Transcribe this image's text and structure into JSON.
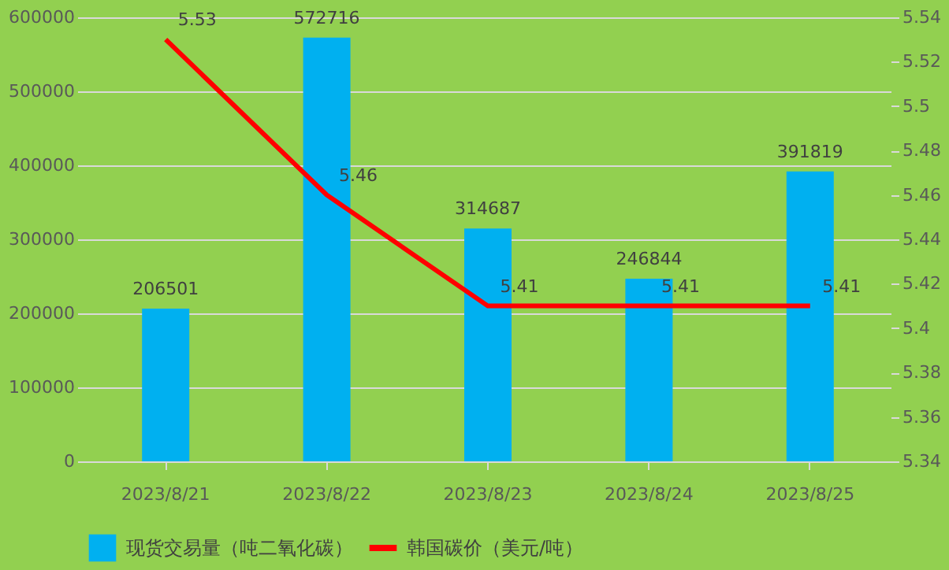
{
  "chart_data": {
    "type": "bar",
    "categories": [
      "2023/8/21",
      "2023/8/22",
      "2023/8/23",
      "2023/8/24",
      "2023/8/25"
    ],
    "series": [
      {
        "name": "现货交易量（吨二氧化碳）",
        "color": "#00b0f0",
        "values": [
          206501,
          572716,
          314687,
          246844,
          391819
        ]
      },
      {
        "name": "韩国碳价（美元/吨）",
        "type": "line",
        "axis": "y2",
        "color": "#ff0000",
        "values": [
          5.53,
          5.46,
          5.41,
          5.41,
          5.41
        ]
      }
    ],
    "ylim": [
      0,
      600000
    ],
    "yticks": [
      0,
      100000,
      200000,
      300000,
      400000,
      500000,
      600000
    ],
    "y2lim": [
      5.34,
      5.54
    ],
    "y2ticks": [
      5.34,
      5.36,
      5.38,
      5.4,
      5.42,
      5.44,
      5.46,
      5.48,
      5.5,
      5.52,
      5.54
    ],
    "data_labels": true,
    "grid": "y",
    "legend": "bottom",
    "marker": "none",
    "line_style": "solid"
  }
}
